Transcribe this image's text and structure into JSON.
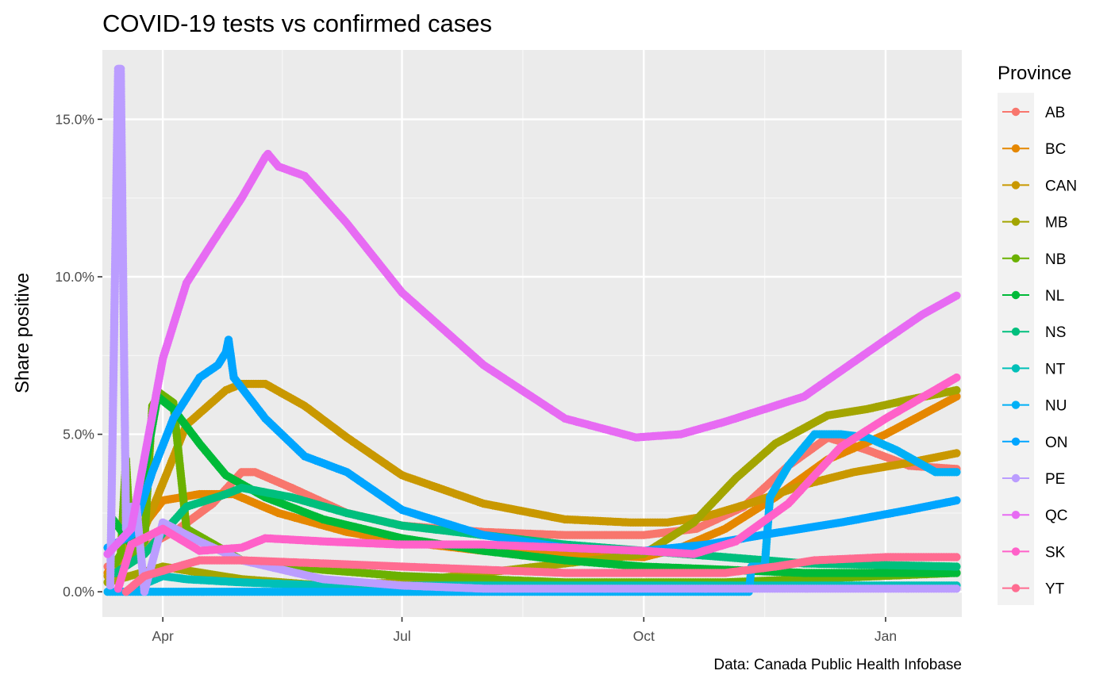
{
  "chart_data": {
    "type": "line",
    "title": "COVID-19 tests vs confirmed cases",
    "xlabel": "",
    "ylabel": "Share positive",
    "caption": "Data: Canada Public Health Infobase",
    "legend_title": "Province",
    "legend_position": "right",
    "grid": true,
    "x_unit": "date",
    "xlim": [
      "2020-03-09",
      "2021-01-30"
    ],
    "ylim": [
      -0.008,
      0.172
    ],
    "x_ticks": [
      {
        "date": "2020-04-01",
        "label": "Apr"
      },
      {
        "date": "2020-07-01",
        "label": "Jul"
      },
      {
        "date": "2020-10-01",
        "label": "Oct"
      },
      {
        "date": "2021-01-01",
        "label": "Jan"
      }
    ],
    "y_ticks": [
      {
        "value": 0.0,
        "label": "0.0%"
      },
      {
        "value": 0.05,
        "label": "5.0%"
      },
      {
        "value": 0.1,
        "label": "10.0%"
      },
      {
        "value": 0.15,
        "label": "15.0%"
      }
    ],
    "series": [
      {
        "name": "AB",
        "color": "#F8766D",
        "points": [
          [
            "2020-03-11",
            0.008
          ],
          [
            "2020-03-25",
            0.014
          ],
          [
            "2020-04-07",
            0.02
          ],
          [
            "2020-04-20",
            0.028
          ],
          [
            "2020-05-01",
            0.038
          ],
          [
            "2020-05-06",
            0.038
          ],
          [
            "2020-05-20",
            0.033
          ],
          [
            "2020-06-10",
            0.025
          ],
          [
            "2020-07-01",
            0.021
          ],
          [
            "2020-08-01",
            0.019
          ],
          [
            "2020-09-01",
            0.018
          ],
          [
            "2020-10-01",
            0.018
          ],
          [
            "2020-10-21",
            0.02
          ],
          [
            "2020-11-08",
            0.027
          ],
          [
            "2020-11-25",
            0.04
          ],
          [
            "2020-12-10",
            0.049
          ],
          [
            "2020-12-25",
            0.045
          ],
          [
            "2021-01-10",
            0.04
          ],
          [
            "2021-01-28",
            0.039
          ]
        ]
      },
      {
        "name": "BC",
        "color": "#E58700",
        "points": [
          [
            "2020-03-11",
            0.006
          ],
          [
            "2020-03-20",
            0.016
          ],
          [
            "2020-04-01",
            0.029
          ],
          [
            "2020-04-15",
            0.031
          ],
          [
            "2020-04-28",
            0.031
          ],
          [
            "2020-05-15",
            0.025
          ],
          [
            "2020-06-10",
            0.019
          ],
          [
            "2020-07-01",
            0.016
          ],
          [
            "2020-08-01",
            0.013
          ],
          [
            "2020-09-01",
            0.012
          ],
          [
            "2020-10-01",
            0.011
          ],
          [
            "2020-10-15",
            0.014
          ],
          [
            "2020-11-01",
            0.02
          ],
          [
            "2020-11-20",
            0.03
          ],
          [
            "2020-12-10",
            0.042
          ],
          [
            "2021-01-01",
            0.05
          ],
          [
            "2021-01-28",
            0.062
          ]
        ]
      },
      {
        "name": "CAN",
        "color": "#C99800",
        "points": [
          [
            "2020-03-11",
            0.005
          ],
          [
            "2020-03-25",
            0.02
          ],
          [
            "2020-04-10",
            0.053
          ],
          [
            "2020-04-25",
            0.064
          ],
          [
            "2020-05-01",
            0.066
          ],
          [
            "2020-05-10",
            0.066
          ],
          [
            "2020-05-25",
            0.059
          ],
          [
            "2020-06-10",
            0.049
          ],
          [
            "2020-07-01",
            0.037
          ],
          [
            "2020-08-01",
            0.028
          ],
          [
            "2020-09-01",
            0.023
          ],
          [
            "2020-09-26",
            0.022
          ],
          [
            "2020-10-10",
            0.022
          ],
          [
            "2020-10-25",
            0.024
          ],
          [
            "2020-11-10",
            0.028
          ],
          [
            "2020-12-01",
            0.034
          ],
          [
            "2020-12-20",
            0.038
          ],
          [
            "2021-01-10",
            0.041
          ],
          [
            "2021-01-28",
            0.044
          ]
        ]
      },
      {
        "name": "MB",
        "color": "#A3A500",
        "points": [
          [
            "2020-03-11",
            0.003
          ],
          [
            "2020-04-01",
            0.008
          ],
          [
            "2020-05-01",
            0.004
          ],
          [
            "2020-06-01",
            0.002
          ],
          [
            "2020-07-01",
            0.003
          ],
          [
            "2020-08-01",
            0.006
          ],
          [
            "2020-09-01",
            0.009
          ],
          [
            "2020-10-01",
            0.012
          ],
          [
            "2020-10-20",
            0.022
          ],
          [
            "2020-11-05",
            0.036
          ],
          [
            "2020-11-20",
            0.047
          ],
          [
            "2020-12-10",
            0.056
          ],
          [
            "2020-12-25",
            0.058
          ],
          [
            "2021-01-10",
            0.061
          ],
          [
            "2021-01-28",
            0.064
          ]
        ]
      },
      {
        "name": "NB",
        "color": "#6BB100",
        "points": [
          [
            "2020-03-14",
            0.009
          ],
          [
            "2020-03-16",
            0.012
          ],
          [
            "2020-03-18",
            0.042
          ],
          [
            "2020-03-20",
            0.011
          ],
          [
            "2020-03-25",
            0.016
          ],
          [
            "2020-03-28",
            0.059
          ],
          [
            "2020-03-31",
            0.063
          ],
          [
            "2020-04-05",
            0.06
          ],
          [
            "2020-04-10",
            0.02
          ],
          [
            "2020-05-01",
            0.01
          ],
          [
            "2020-06-01",
            0.007
          ],
          [
            "2020-07-01",
            0.005
          ],
          [
            "2020-08-01",
            0.004
          ],
          [
            "2020-09-01",
            0.003
          ],
          [
            "2020-10-01",
            0.003
          ],
          [
            "2020-11-01",
            0.003
          ],
          [
            "2020-12-01",
            0.004
          ],
          [
            "2021-01-28",
            0.006
          ]
        ]
      },
      {
        "name": "NL",
        "color": "#00BA38",
        "points": [
          [
            "2020-03-13",
            0.023
          ],
          [
            "2020-03-20",
            0.015
          ],
          [
            "2020-03-30",
            0.062
          ],
          [
            "2020-04-05",
            0.058
          ],
          [
            "2020-04-15",
            0.047
          ],
          [
            "2020-04-25",
            0.037
          ],
          [
            "2020-05-10",
            0.03
          ],
          [
            "2020-06-01",
            0.023
          ],
          [
            "2020-07-01",
            0.017
          ],
          [
            "2020-08-01",
            0.013
          ],
          [
            "2020-09-01",
            0.01
          ],
          [
            "2020-10-01",
            0.008
          ],
          [
            "2020-11-01",
            0.007
          ],
          [
            "2020-12-01",
            0.006
          ],
          [
            "2021-01-28",
            0.006
          ]
        ]
      },
      {
        "name": "NS",
        "color": "#00BF7D",
        "points": [
          [
            "2020-03-14",
            0.006
          ],
          [
            "2020-03-25",
            0.012
          ],
          [
            "2020-04-10",
            0.027
          ],
          [
            "2020-04-25",
            0.031
          ],
          [
            "2020-05-01",
            0.033
          ],
          [
            "2020-05-20",
            0.03
          ],
          [
            "2020-06-10",
            0.025
          ],
          [
            "2020-07-01",
            0.021
          ],
          [
            "2020-08-01",
            0.018
          ],
          [
            "2020-09-01",
            0.015
          ],
          [
            "2020-10-01",
            0.013
          ],
          [
            "2020-11-01",
            0.011
          ],
          [
            "2020-12-01",
            0.009
          ],
          [
            "2021-01-28",
            0.008
          ]
        ]
      },
      {
        "name": "NT",
        "color": "#00C0B8",
        "points": [
          [
            "2020-03-18",
            0.0
          ],
          [
            "2020-04-01",
            0.005
          ],
          [
            "2020-04-10",
            0.004
          ],
          [
            "2020-05-01",
            0.003
          ],
          [
            "2020-06-01",
            0.002
          ],
          [
            "2020-07-01",
            0.002
          ],
          [
            "2020-08-01",
            0.002
          ],
          [
            "2020-09-01",
            0.002
          ],
          [
            "2020-10-01",
            0.002
          ],
          [
            "2020-11-01",
            0.002
          ],
          [
            "2020-12-01",
            0.002
          ],
          [
            "2021-01-28",
            0.002
          ]
        ]
      },
      {
        "name": "NU",
        "color": "#00B0F6",
        "points": [
          [
            "2020-03-11",
            0.0
          ],
          [
            "2020-06-01",
            0.0
          ],
          [
            "2020-09-01",
            0.0
          ],
          [
            "2020-11-10",
            0.0
          ],
          [
            "2020-11-11",
            0.008
          ],
          [
            "2020-11-16",
            0.008
          ],
          [
            "2020-11-18",
            0.03
          ],
          [
            "2020-11-25",
            0.04
          ],
          [
            "2020-12-05",
            0.05
          ],
          [
            "2020-12-15",
            0.05
          ],
          [
            "2020-12-25",
            0.049
          ],
          [
            "2021-01-05",
            0.045
          ],
          [
            "2021-01-20",
            0.038
          ],
          [
            "2021-01-28",
            0.038
          ]
        ]
      },
      {
        "name": "ON",
        "color": "#00A5FF",
        "points": [
          [
            "2020-03-11",
            0.014
          ],
          [
            "2020-03-20",
            0.018
          ],
          [
            "2020-03-28",
            0.038
          ],
          [
            "2020-04-05",
            0.055
          ],
          [
            "2020-04-15",
            0.068
          ],
          [
            "2020-04-22",
            0.072
          ],
          [
            "2020-04-25",
            0.076
          ],
          [
            "2020-04-26",
            0.08
          ],
          [
            "2020-04-28",
            0.068
          ],
          [
            "2020-05-10",
            0.055
          ],
          [
            "2020-05-25",
            0.043
          ],
          [
            "2020-06-10",
            0.038
          ],
          [
            "2020-07-01",
            0.026
          ],
          [
            "2020-08-01",
            0.018
          ],
          [
            "2020-09-01",
            0.014
          ],
          [
            "2020-10-01",
            0.013
          ],
          [
            "2020-10-25",
            0.015
          ],
          [
            "2020-11-15",
            0.018
          ],
          [
            "2020-12-15",
            0.022
          ],
          [
            "2021-01-10",
            0.026
          ],
          [
            "2021-01-28",
            0.029
          ]
        ]
      },
      {
        "name": "PE",
        "color": "#BB9DFF",
        "points": [
          [
            "2020-03-12",
            0.002
          ],
          [
            "2020-03-15",
            0.166
          ],
          [
            "2020-03-16",
            0.166
          ],
          [
            "2020-03-18",
            0.02
          ],
          [
            "2020-03-20",
            0.027
          ],
          [
            "2020-03-22",
            0.027
          ],
          [
            "2020-03-25",
            0.0
          ],
          [
            "2020-04-01",
            0.022
          ],
          [
            "2020-04-15",
            0.016
          ],
          [
            "2020-05-01",
            0.01
          ],
          [
            "2020-06-01",
            0.004
          ],
          [
            "2020-07-01",
            0.002
          ],
          [
            "2020-08-01",
            0.001
          ],
          [
            "2020-10-01",
            0.001
          ],
          [
            "2021-01-28",
            0.001
          ]
        ]
      },
      {
        "name": "QC",
        "color": "#E76BF3",
        "points": [
          [
            "2020-03-11",
            0.012
          ],
          [
            "2020-03-20",
            0.02
          ],
          [
            "2020-04-01",
            0.074
          ],
          [
            "2020-04-10",
            0.098
          ],
          [
            "2020-04-20",
            0.111
          ],
          [
            "2020-05-01",
            0.125
          ],
          [
            "2020-05-10",
            0.138
          ],
          [
            "2020-05-11",
            0.139
          ],
          [
            "2020-05-15",
            0.135
          ],
          [
            "2020-05-25",
            0.132
          ],
          [
            "2020-06-10",
            0.117
          ],
          [
            "2020-07-01",
            0.095
          ],
          [
            "2020-08-01",
            0.072
          ],
          [
            "2020-09-01",
            0.055
          ],
          [
            "2020-09-28",
            0.049
          ],
          [
            "2020-10-15",
            0.05
          ],
          [
            "2020-11-01",
            0.054
          ],
          [
            "2020-12-01",
            0.062
          ],
          [
            "2021-01-01",
            0.08
          ],
          [
            "2021-01-15",
            0.088
          ],
          [
            "2021-01-28",
            0.094
          ]
        ]
      },
      {
        "name": "SK",
        "color": "#FF61C9",
        "points": [
          [
            "2020-03-15",
            0.001
          ],
          [
            "2020-03-20",
            0.015
          ],
          [
            "2020-04-01",
            0.02
          ],
          [
            "2020-04-15",
            0.013
          ],
          [
            "2020-05-01",
            0.014
          ],
          [
            "2020-05-10",
            0.017
          ],
          [
            "2020-06-01",
            0.016
          ],
          [
            "2020-07-01",
            0.015
          ],
          [
            "2020-08-01",
            0.015
          ],
          [
            "2020-09-01",
            0.014
          ],
          [
            "2020-10-01",
            0.013
          ],
          [
            "2020-10-20",
            0.012
          ],
          [
            "2020-11-05",
            0.016
          ],
          [
            "2020-11-25",
            0.028
          ],
          [
            "2020-12-15",
            0.046
          ],
          [
            "2021-01-01",
            0.055
          ],
          [
            "2021-01-28",
            0.068
          ]
        ]
      },
      {
        "name": "YT",
        "color": "#FF6C91",
        "points": [
          [
            "2020-03-18",
            0.0
          ],
          [
            "2020-03-25",
            0.005
          ],
          [
            "2020-04-15",
            0.01
          ],
          [
            "2020-05-01",
            0.01
          ],
          [
            "2020-06-01",
            0.009
          ],
          [
            "2020-07-01",
            0.008
          ],
          [
            "2020-08-01",
            0.007
          ],
          [
            "2020-09-01",
            0.006
          ],
          [
            "2020-10-01",
            0.006
          ],
          [
            "2020-11-01",
            0.006
          ],
          [
            "2020-11-20",
            0.008
          ],
          [
            "2020-12-05",
            0.01
          ],
          [
            "2021-01-01",
            0.011
          ],
          [
            "2021-01-28",
            0.011
          ]
        ]
      }
    ]
  }
}
